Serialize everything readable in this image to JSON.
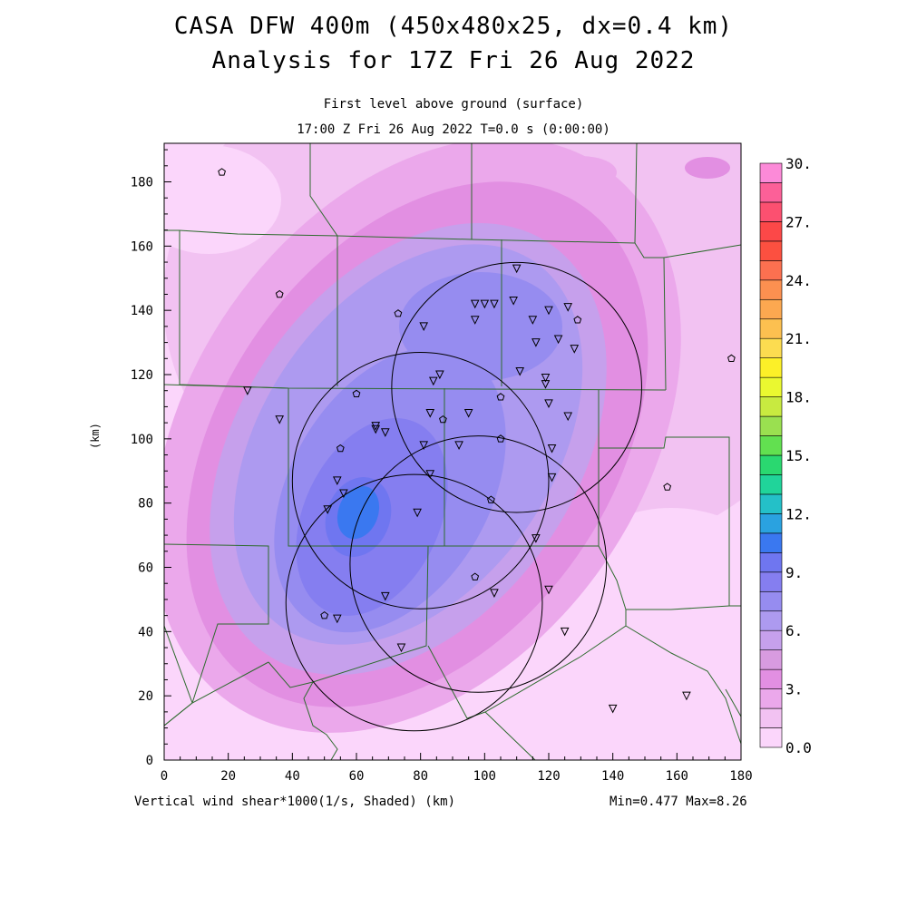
{
  "header": {
    "title_line1": "CASA DFW 400m (450x480x25, dx=0.4 km)",
    "title_line2": "Analysis for 17Z Fri 26 Aug 2022",
    "subtitle_line1": "First level above ground (surface)",
    "subtitle_line2": "17:00 Z Fri 26 Aug 2022   T=0.0 s (0:00:00)"
  },
  "footer": {
    "field_label": "Vertical wind shear*1000(1/s, Shaded)  (km)",
    "minmax": "Min=0.477 Max=8.26"
  },
  "chart_data": {
    "type": "heatmap",
    "xlabel": "",
    "ylabel": "(km)",
    "xlim": [
      0,
      180
    ],
    "ylim": [
      0,
      192
    ],
    "x_ticks": [
      0,
      20,
      40,
      60,
      80,
      100,
      120,
      140,
      160,
      180
    ],
    "y_ticks": [
      0,
      20,
      40,
      60,
      80,
      100,
      120,
      140,
      160,
      180
    ],
    "colorbar": {
      "min": 0.0,
      "max": 30.0,
      "step": 1.5,
      "labels": [
        "0.0",
        "3.",
        "6.",
        "9.",
        "12.",
        "15.",
        "18.",
        "21.",
        "24.",
        "27.",
        "30."
      ],
      "colors": [
        "#fbd6fb",
        "#f2c2f2",
        "#eba8eb",
        "#e28fe2",
        "#d89be0",
        "#c6a0ec",
        "#ad9af0",
        "#968cf0",
        "#857ef0",
        "#6f76f0",
        "#3a78f0",
        "#2aa2e0",
        "#24c0c8",
        "#20d49a",
        "#2ad870",
        "#62e050",
        "#9ae050",
        "#c8ea40",
        "#eaf830",
        "#fcf028",
        "#fcdc50",
        "#fcc050",
        "#fca850",
        "#fc9050",
        "#fc7050",
        "#fc5040",
        "#fc4848",
        "#fc5070",
        "#fc6098",
        "#fc8ad8"
      ]
    },
    "radar_circles": [
      {
        "cx": 78,
        "cy": 49,
        "r": 40
      },
      {
        "cx": 110,
        "cy": 116,
        "r": 39
      },
      {
        "cx": 80,
        "cy": 87,
        "r": 40
      },
      {
        "cx": 98,
        "cy": 61,
        "r": 40
      }
    ],
    "stations_triangle": [
      [
        110,
        153
      ],
      [
        109,
        143
      ],
      [
        103,
        142
      ],
      [
        97,
        142
      ],
      [
        97,
        137
      ],
      [
        115,
        137
      ],
      [
        116,
        130
      ],
      [
        100,
        142
      ],
      [
        81,
        135
      ],
      [
        120,
        140
      ],
      [
        123,
        131
      ],
      [
        126,
        141
      ],
      [
        128,
        128
      ],
      [
        111,
        121
      ],
      [
        119,
        119
      ],
      [
        86,
        120
      ],
      [
        84,
        118
      ],
      [
        119,
        117
      ],
      [
        95,
        108
      ],
      [
        83,
        108
      ],
      [
        66,
        104
      ],
      [
        66,
        103
      ],
      [
        69,
        102
      ],
      [
        26,
        115
      ],
      [
        36,
        106
      ],
      [
        120,
        111
      ],
      [
        126,
        107
      ],
      [
        81,
        98
      ],
      [
        92,
        98
      ],
      [
        121,
        97
      ],
      [
        83,
        89
      ],
      [
        54,
        87
      ],
      [
        56,
        83
      ],
      [
        121,
        88
      ],
      [
        51,
        78
      ],
      [
        116,
        69
      ],
      [
        79,
        77
      ],
      [
        69,
        51
      ],
      [
        103,
        52
      ],
      [
        120,
        53
      ],
      [
        54,
        44
      ],
      [
        74,
        35
      ],
      [
        125,
        40
      ],
      [
        140,
        16
      ],
      [
        163,
        20
      ]
    ],
    "stations_circle": [
      [
        18,
        183
      ],
      [
        36,
        145
      ],
      [
        73,
        139
      ],
      [
        129,
        137
      ],
      [
        105,
        113
      ],
      [
        60,
        114
      ],
      [
        87,
        106
      ],
      [
        105,
        100
      ],
      [
        55,
        97
      ],
      [
        102,
        81
      ],
      [
        157,
        85
      ],
      [
        97,
        57
      ],
      [
        50,
        45
      ],
      [
        177,
        125
      ]
    ]
  }
}
